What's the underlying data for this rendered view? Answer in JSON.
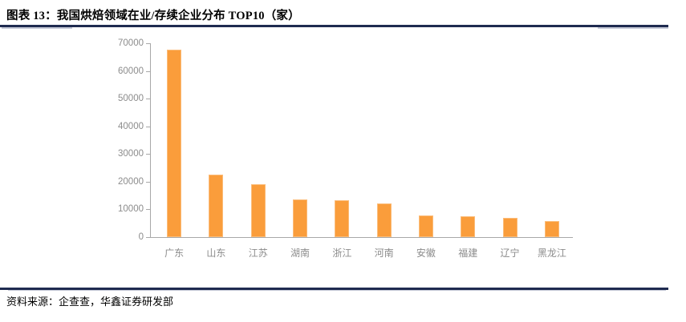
{
  "title": "图表 13：我国烘焙领域在业/存续企业分布 TOP10（家）",
  "source": "资料来源：企查查，华鑫证券研发部",
  "colors": {
    "bar": "#FA9D3B",
    "bar_border": "#FBBC79",
    "rule": "#1F2B50",
    "axis": "#A8A8A8",
    "tick_label": "#8C8C8C"
  },
  "chart_data": {
    "type": "bar",
    "title": "我国烘焙领域在业/存续企业分布 TOP10（家）",
    "categories": [
      "广东",
      "山东",
      "江苏",
      "湖南",
      "浙江",
      "河南",
      "安徽",
      "福建",
      "辽宁",
      "黑龙江"
    ],
    "values": [
      67700,
      22700,
      19100,
      13600,
      13300,
      12100,
      7900,
      7500,
      6800,
      5900
    ],
    "xlabel": "",
    "ylabel": "",
    "ylim": [
      0,
      70000
    ],
    "yticks": [
      0,
      10000,
      20000,
      30000,
      40000,
      50000,
      60000,
      70000
    ],
    "grid": false,
    "legend": "none",
    "bar_color": "#FA9D3B"
  }
}
